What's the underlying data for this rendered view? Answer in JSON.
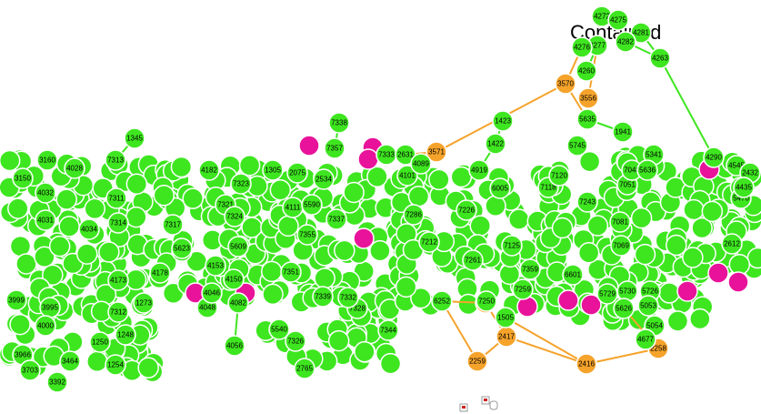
{
  "caption": "Contained",
  "nodes": [
    {
      "label": "3570",
      "color": "#f5a32b"
    },
    {
      "label": "3556",
      "color": "#f5a32b"
    },
    {
      "label": "3571",
      "color": "#f5a32b"
    },
    {
      "label": "2417",
      "color": "#f5a32b"
    },
    {
      "label": "2417",
      "color": "#f5a32b"
    },
    {
      "label": "2259",
      "color": "#f5a32b"
    },
    {
      "label": "2416",
      "color": "#f5a32b"
    },
    {
      "label": "2258",
      "color": "#f5a32b"
    },
    {
      "label": "4272",
      "color": "#3ee620"
    },
    {
      "label": "4275",
      "color": "#3ee620"
    },
    {
      "label": "4281",
      "color": "#3ee620"
    },
    {
      "label": "4282",
      "color": "#3ee620"
    },
    {
      "label": "4277",
      "color": "#3ee620"
    },
    {
      "label": "4276",
      "color": "#3ee620"
    },
    {
      "label": "4260",
      "color": "#3ee620"
    },
    {
      "label": "4263",
      "color": "#3ee620"
    },
    {
      "label": "1423",
      "color": "#3ee620"
    },
    {
      "label": "1422",
      "color": "#3ee620"
    },
    {
      "label": "4919",
      "color": "#3ee620"
    },
    {
      "label": "1941",
      "color": "#3ee620"
    },
    {
      "label": "5635",
      "color": "#3ee620"
    },
    {
      "label": "5341",
      "color": "#3ee620"
    },
    {
      "label": "7338",
      "color": "#3ee620"
    },
    {
      "label": "7357",
      "color": "#3ee620"
    },
    {
      "label": "7333",
      "color": "#3ee620"
    },
    {
      "label": "2631",
      "color": "#3ee620"
    },
    {
      "label": "1345",
      "color": "#3ee620"
    },
    {
      "label": "7313",
      "color": "#3ee620"
    },
    {
      "label": "3160",
      "color": "#3ee620"
    },
    {
      "label": "4028",
      "color": "#3ee620"
    },
    {
      "label": "3150",
      "color": "#3ee620"
    },
    {
      "label": "4032",
      "color": "#3ee620"
    },
    {
      "label": "4031",
      "color": "#3ee620"
    },
    {
      "label": "3999",
      "color": "#3ee620"
    },
    {
      "label": "3995",
      "color": "#3ee620"
    },
    {
      "label": "4000",
      "color": "#3ee620"
    },
    {
      "label": "3966",
      "color": "#3ee620"
    },
    {
      "label": "3392",
      "color": "#3ee620"
    },
    {
      "label": "3464",
      "color": "#3ee620"
    },
    {
      "label": "3703",
      "color": "#3ee620"
    },
    {
      "label": "1250",
      "color": "#3ee620"
    },
    {
      "label": "1248",
      "color": "#3ee620"
    },
    {
      "label": "1254",
      "color": "#3ee620"
    },
    {
      "label": "7312",
      "color": "#3ee620"
    },
    {
      "label": "1273",
      "color": "#3ee620"
    },
    {
      "label": "4056",
      "color": "#3ee620"
    },
    {
      "label": "4048",
      "color": "#3ee620"
    },
    {
      "label": "4082",
      "color": "#3ee620"
    },
    {
      "label": "4046",
      "color": "#3ee620"
    },
    {
      "label": "5540",
      "color": "#3ee620"
    },
    {
      "label": "7326",
      "color": "#3ee620"
    },
    {
      "label": "2765",
      "color": "#3ee620"
    },
    {
      "label": "7344",
      "color": "#3ee620"
    },
    {
      "label": "7328",
      "color": "#3ee620"
    },
    {
      "label": "7339",
      "color": "#3ee620"
    },
    {
      "label": "7332",
      "color": "#3ee620"
    },
    {
      "label": "7351",
      "color": "#3ee620"
    },
    {
      "label": "7355",
      "color": "#3ee620"
    },
    {
      "label": "2075",
      "color": "#3ee620"
    },
    {
      "label": "2534",
      "color": "#3ee620"
    },
    {
      "label": "1305",
      "color": "#3ee620"
    },
    {
      "label": "4182",
      "color": "#3ee620"
    },
    {
      "label": "7323",
      "color": "#3ee620"
    },
    {
      "label": "4111",
      "color": "#3ee620"
    },
    {
      "label": "5609",
      "color": "#3ee620"
    },
    {
      "label": "4153",
      "color": "#3ee620"
    },
    {
      "label": "4150",
      "color": "#3ee620"
    },
    {
      "label": "5623",
      "color": "#3ee620"
    },
    {
      "label": "4173",
      "color": "#3ee620"
    },
    {
      "label": "4178",
      "color": "#3ee620"
    },
    {
      "label": "4034",
      "color": "#3ee620"
    },
    {
      "label": "7311",
      "color": "#3ee620"
    },
    {
      "label": "7314",
      "color": "#3ee620"
    },
    {
      "label": "7317",
      "color": "#3ee620"
    },
    {
      "label": "7321",
      "color": "#3ee620"
    },
    {
      "label": "7324",
      "color": "#3ee620"
    },
    {
      "label": "4101",
      "color": "#3ee620"
    },
    {
      "label": "4089",
      "color": "#3ee620"
    },
    {
      "label": "5590",
      "color": "#3ee620"
    },
    {
      "label": "7337",
      "color": "#3ee620"
    },
    {
      "label": "6252",
      "color": "#3ee620"
    },
    {
      "label": "1505",
      "color": "#3ee620"
    },
    {
      "label": "7250",
      "color": "#3ee620"
    },
    {
      "label": "7259",
      "color": "#3ee620"
    },
    {
      "label": "7125",
      "color": "#3ee620"
    },
    {
      "label": "7261",
      "color": "#3ee620"
    },
    {
      "label": "7359",
      "color": "#3ee620"
    },
    {
      "label": "7286",
      "color": "#3ee620"
    },
    {
      "label": "7212",
      "color": "#3ee620"
    },
    {
      "label": "7226",
      "color": "#3ee620"
    },
    {
      "label": "6005",
      "color": "#3ee620"
    },
    {
      "label": "7118",
      "color": "#3ee620"
    },
    {
      "label": "7120",
      "color": "#3ee620"
    },
    {
      "label": "7051",
      "color": "#3ee620"
    },
    {
      "label": "7048",
      "color": "#3ee620"
    },
    {
      "label": "7243",
      "color": "#3ee620"
    },
    {
      "label": "6601",
      "color": "#3ee620"
    },
    {
      "label": "5729",
      "color": "#3ee620"
    },
    {
      "label": "5730",
      "color": "#3ee620"
    },
    {
      "label": "5726",
      "color": "#3ee620"
    },
    {
      "label": "5626",
      "color": "#3ee620"
    },
    {
      "label": "5054",
      "color": "#3ee620"
    },
    {
      "label": "5053",
      "color": "#3ee620"
    },
    {
      "label": "4677",
      "color": "#3ee620"
    },
    {
      "label": "4545",
      "color": "#3ee620"
    },
    {
      "label": "2432",
      "color": "#3ee620"
    },
    {
      "label": "5470",
      "color": "#3ee620"
    },
    {
      "label": "4435",
      "color": "#3ee620"
    },
    {
      "label": "2612",
      "color": "#3ee620"
    },
    {
      "label": "7081",
      "color": "#3ee620"
    },
    {
      "label": "7069",
      "color": "#3ee620"
    },
    {
      "label": "5745",
      "color": "#3ee620"
    },
    {
      "label": "4290",
      "color": "#3ee620"
    },
    {
      "label": "5636",
      "color": "#3ee620"
    }
  ]
}
